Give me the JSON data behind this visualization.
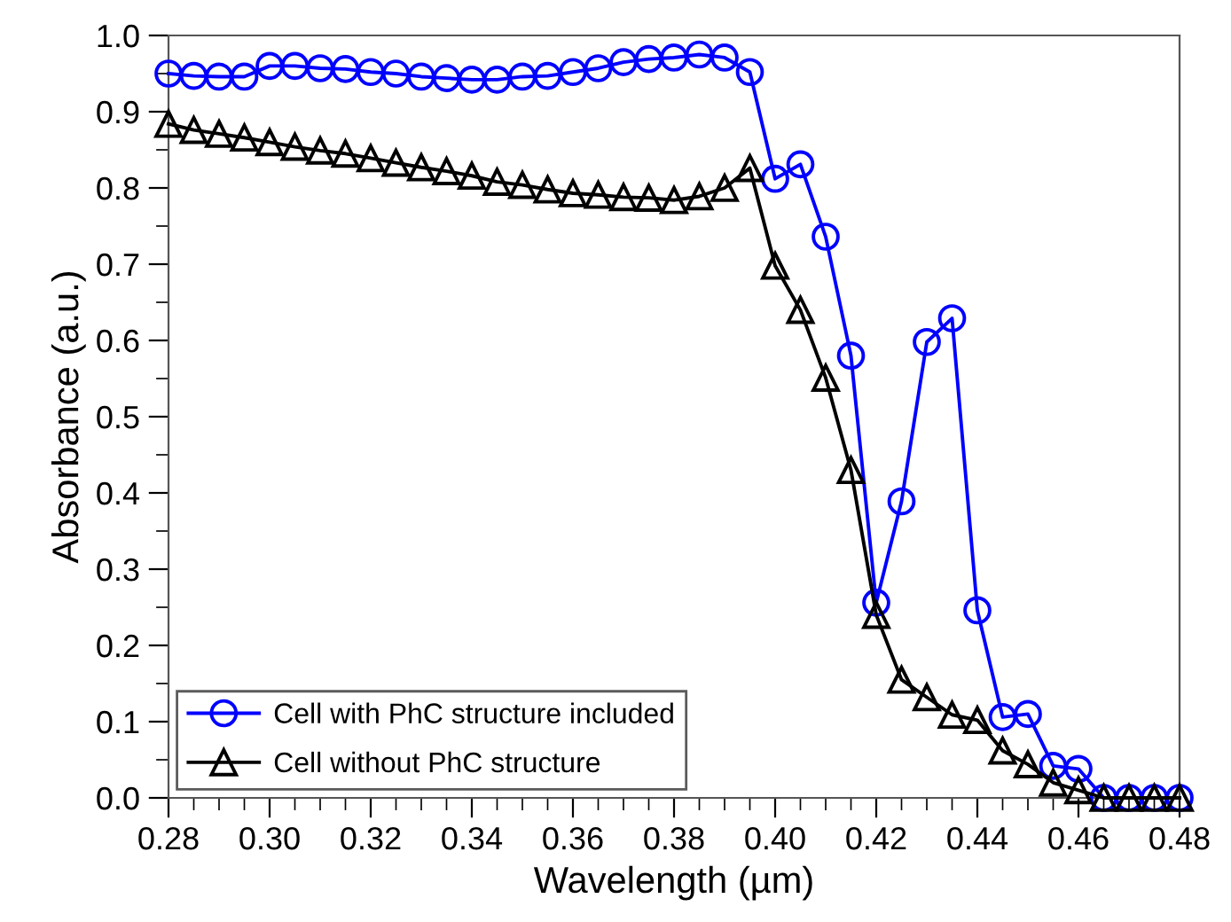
{
  "chart_data": {
    "type": "line",
    "xlabel": "Wavelength (µm)",
    "ylabel": "Absorbance (a.u.)",
    "x": [
      0.28,
      0.285,
      0.29,
      0.295,
      0.3,
      0.305,
      0.31,
      0.315,
      0.32,
      0.325,
      0.33,
      0.335,
      0.34,
      0.345,
      0.35,
      0.355,
      0.36,
      0.365,
      0.37,
      0.375,
      0.38,
      0.385,
      0.39,
      0.395,
      0.4,
      0.405,
      0.41,
      0.415,
      0.42,
      0.425,
      0.43,
      0.435,
      0.44,
      0.445,
      0.45,
      0.455,
      0.46,
      0.465,
      0.47,
      0.475,
      0.48
    ],
    "series": [
      {
        "name": "Cell with PhC structure included",
        "color": "#0000ff",
        "marker": "circle",
        "values": [
          0.95,
          0.947,
          0.946,
          0.946,
          0.96,
          0.96,
          0.957,
          0.956,
          0.952,
          0.95,
          0.946,
          0.944,
          0.942,
          0.942,
          0.946,
          0.947,
          0.952,
          0.957,
          0.965,
          0.969,
          0.971,
          0.975,
          0.971,
          0.952,
          0.812,
          0.831,
          0.736,
          0.58,
          0.256,
          0.389,
          0.598,
          0.629,
          0.246,
          0.106,
          0.11,
          0.042,
          0.038,
          0,
          0,
          0,
          0
        ]
      },
      {
        "name": "Cell without PhC structure",
        "color": "#000000",
        "marker": "triangle",
        "values": [
          0.884,
          0.876,
          0.871,
          0.866,
          0.86,
          0.854,
          0.849,
          0.845,
          0.839,
          0.833,
          0.827,
          0.822,
          0.816,
          0.808,
          0.804,
          0.798,
          0.793,
          0.791,
          0.788,
          0.787,
          0.784,
          0.789,
          0.8,
          0.826,
          0.698,
          0.64,
          0.551,
          0.43,
          0.24,
          0.155,
          0.132,
          0.109,
          0.102,
          0.062,
          0.044,
          0.02,
          0.01,
          0,
          0,
          0,
          0
        ]
      }
    ],
    "xlim": [
      0.28,
      0.48
    ],
    "xticks": [
      {
        "value": 0.28,
        "label": "0.28"
      },
      {
        "value": 0.3,
        "label": "0.30"
      },
      {
        "value": 0.32,
        "label": "0.32"
      },
      {
        "value": 0.34,
        "label": "0.34"
      },
      {
        "value": 0.36,
        "label": "0.36"
      },
      {
        "value": 0.38,
        "label": "0.38"
      },
      {
        "value": 0.4,
        "label": "0.40"
      },
      {
        "value": 0.42,
        "label": "0.42"
      },
      {
        "value": 0.44,
        "label": "0.44"
      },
      {
        "value": 0.46,
        "label": "0.46"
      },
      {
        "value": 0.48,
        "label": "0.48"
      }
    ],
    "ylim": [
      0,
      1
    ],
    "yticks": [
      {
        "value": 0,
        "label": "0.0"
      },
      {
        "value": 0.1,
        "label": "0.1"
      },
      {
        "value": 0.2,
        "label": "0.2"
      },
      {
        "value": 0.3,
        "label": "0.3"
      },
      {
        "value": 0.4,
        "label": "0.4"
      },
      {
        "value": 0.5,
        "label": "0.5"
      },
      {
        "value": 0.6,
        "label": "0.6"
      },
      {
        "value": 0.7,
        "label": "0.7"
      },
      {
        "value": 0.8,
        "label": "0.8"
      },
      {
        "value": 0.9,
        "label": "0.9"
      },
      {
        "value": 1.0,
        "label": "1.0"
      }
    ],
    "grid": false,
    "legend": "bottom left",
    "line_style": "solid"
  }
}
